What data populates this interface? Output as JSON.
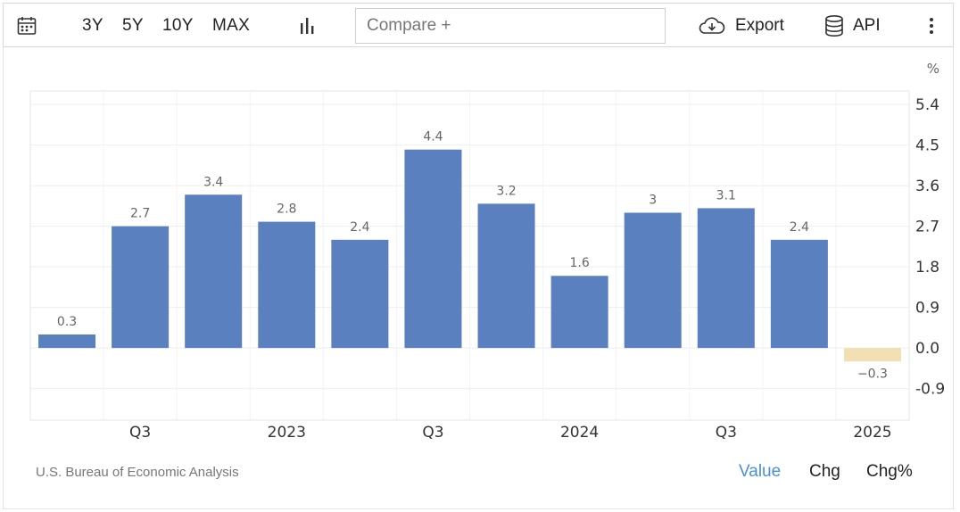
{
  "toolbar": {
    "calendar_icon": "calendar-icon",
    "ranges": [
      "3Y",
      "5Y",
      "10Y",
      "MAX"
    ],
    "chart_type_icon": "bar-chart-icon",
    "compare_placeholder": "Compare +",
    "export_label": "Export",
    "export_icon": "cloud-download-icon",
    "api_label": "API",
    "api_icon": "database-icon",
    "more_icon": "more-vertical-icon"
  },
  "chart_data": {
    "type": "bar",
    "unit": "%",
    "categories": [
      "2022 Q2",
      "2022 Q3",
      "2022 Q4",
      "2023 Q1",
      "2023 Q2",
      "2023 Q3",
      "2023 Q4",
      "2024 Q1",
      "2024 Q2",
      "2024 Q3",
      "2024 Q4",
      "2025 Q1"
    ],
    "values": [
      0.3,
      2.7,
      3.4,
      2.8,
      2.4,
      4.4,
      3.2,
      1.6,
      3,
      3.1,
      2.4,
      -0.3
    ],
    "value_labels": [
      "0.3",
      "2.7",
      "3.4",
      "2.8",
      "2.4",
      "4.4",
      "3.2",
      "1.6",
      "3",
      "3.1",
      "2.4",
      "−0.3"
    ],
    "x_tick_labels": [
      {
        "label": "Q3",
        "category": "2022 Q3"
      },
      {
        "label": "2023",
        "category": "2023 Q1"
      },
      {
        "label": "Q3",
        "category": "2023 Q3"
      },
      {
        "label": "2024",
        "category": "2024 Q1"
      },
      {
        "label": "Q3",
        "category": "2024 Q3"
      },
      {
        "label": "2025",
        "category": "2025 Q1"
      }
    ],
    "y_ticks": [
      "5.4",
      "4.5",
      "3.6",
      "2.7",
      "1.8",
      "0.9",
      "0.0",
      "-0.9"
    ],
    "y_tick_values": [
      5.4,
      4.5,
      3.6,
      2.7,
      1.8,
      0.9,
      0.0,
      -0.9
    ],
    "ylim": [
      -1.6,
      5.7
    ],
    "positive_color": "#5b80bf",
    "negative_color": "#f2dfb4",
    "grid": true,
    "y_axis_position": "right"
  },
  "footer": {
    "source": "U.S. Bureau of Economic Analysis",
    "modes": [
      "Value",
      "Chg",
      "Chg%"
    ],
    "active_mode": "Value",
    "active_color": "#4a90d9"
  }
}
